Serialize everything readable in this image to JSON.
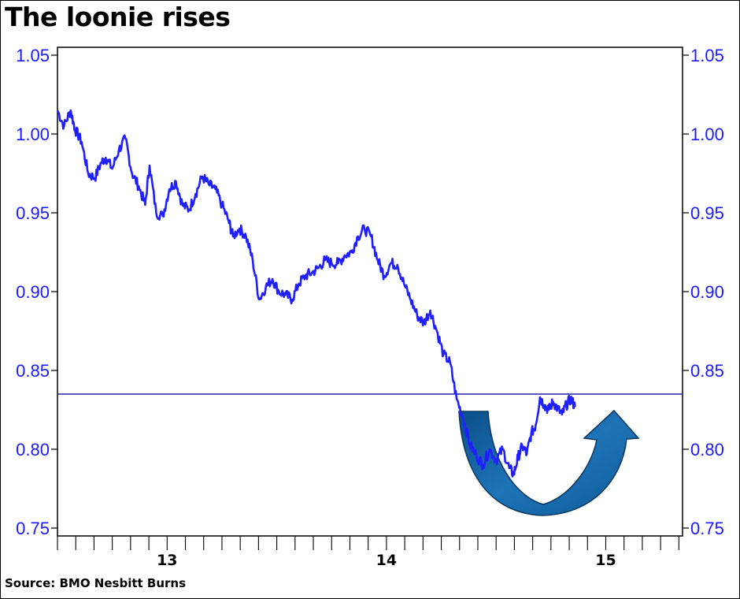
{
  "title": "The loonie rises",
  "source": "Source: BMO Nesbitt Burns",
  "chart_data": {
    "type": "line",
    "title": "The loonie rises",
    "xlabel": "",
    "ylabel": "",
    "xlim": [
      12.5,
      15.35
    ],
    "ylim": [
      0.745,
      1.055
    ],
    "y_ticks": [
      "0.75",
      "0.80",
      "0.85",
      "0.90",
      "0.95",
      "1.00",
      "1.05"
    ],
    "y_ticks_right": [
      "0.75",
      "0.80",
      "0.85",
      "0.90",
      "0.95",
      "1.00",
      "1.05"
    ],
    "x_ticks": [
      "13",
      "14",
      "15"
    ],
    "reference_line": 0.835,
    "grid": false,
    "series": [
      {
        "color": "#1f1fff",
        "x": [
          12.5,
          12.53,
          12.56,
          12.58,
          12.61,
          12.64,
          12.67,
          12.7,
          12.72,
          12.75,
          12.78,
          12.81,
          12.84,
          12.87,
          12.9,
          12.92,
          12.95,
          12.98,
          13.01,
          13.04,
          13.07,
          13.1,
          13.13,
          13.16,
          13.19,
          13.22,
          13.25,
          13.28,
          13.3,
          13.33,
          13.36,
          13.39,
          13.42,
          13.45,
          13.48,
          13.51,
          13.54,
          13.57,
          13.6,
          13.63,
          13.66,
          13.69,
          13.72,
          13.75,
          13.78,
          13.81,
          13.84,
          13.87,
          13.9,
          13.93,
          13.96,
          13.99,
          14.02,
          14.05,
          14.08,
          14.11,
          14.14,
          14.17,
          14.2,
          14.23,
          14.26,
          14.29,
          14.32,
          14.35,
          14.38,
          14.41,
          14.44,
          14.47,
          14.5,
          14.53,
          14.56,
          14.58,
          14.6,
          14.62,
          14.64,
          14.66,
          14.68,
          14.7,
          14.72,
          14.74,
          14.76,
          14.78,
          14.8,
          14.82,
          14.84,
          14.86
        ],
        "y": [
          1.015,
          1.005,
          1.015,
          1.003,
          0.995,
          0.975,
          0.972,
          0.982,
          0.985,
          0.978,
          0.99,
          0.997,
          0.975,
          0.967,
          0.955,
          0.98,
          0.95,
          0.948,
          0.965,
          0.97,
          0.955,
          0.952,
          0.962,
          0.973,
          0.968,
          0.965,
          0.955,
          0.945,
          0.935,
          0.94,
          0.935,
          0.92,
          0.895,
          0.903,
          0.908,
          0.9,
          0.898,
          0.895,
          0.905,
          0.91,
          0.912,
          0.915,
          0.92,
          0.918,
          0.918,
          0.923,
          0.925,
          0.935,
          0.94,
          0.935,
          0.92,
          0.91,
          0.918,
          0.917,
          0.905,
          0.895,
          0.885,
          0.88,
          0.888,
          0.875,
          0.86,
          0.855,
          0.832,
          0.82,
          0.803,
          0.796,
          0.79,
          0.8,
          0.793,
          0.8,
          0.788,
          0.784,
          0.795,
          0.802,
          0.797,
          0.81,
          0.815,
          0.833,
          0.828,
          0.825,
          0.83,
          0.826,
          0.822,
          0.828,
          0.832,
          0.827
        ]
      }
    ],
    "annotation": "u-turn-arrow"
  }
}
